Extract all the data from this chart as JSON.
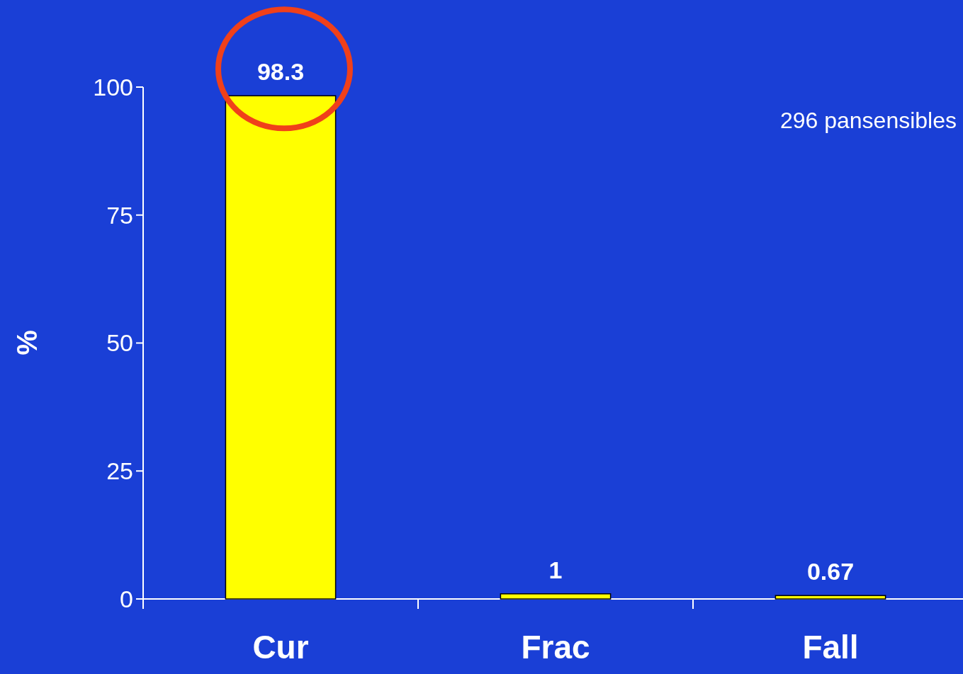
{
  "chart_data": {
    "type": "bar",
    "categories": [
      "Cur",
      "Frac",
      "Fall"
    ],
    "values": [
      98.3,
      1,
      0.67
    ],
    "color": "#ffff00",
    "data_labels": true,
    "ylabel": "%",
    "ylim": [
      0,
      100
    ],
    "yticks": [
      0,
      25,
      50,
      75,
      100
    ],
    "annotations": [
      "296 pansensibles"
    ]
  }
}
